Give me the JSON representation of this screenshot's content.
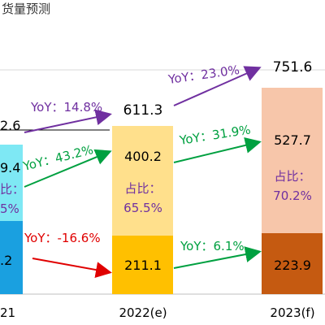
{
  "title": "货量预测",
  "chart_data": {
    "type": "bar",
    "stacked": true,
    "categories": [
      "21",
      "2022(e)",
      "2023(f)"
    ],
    "series": [
      {
        "values": [
          null,
          211.1,
          223.9
        ],
        "colors": [
          "#1aa0e0",
          "#ffc000",
          "#c55a11"
        ]
      },
      {
        "values": [
          null,
          400.2,
          527.7
        ],
        "colors": [
          "#7ee8f4",
          "#ffe08c",
          "#f7c6aa"
        ]
      }
    ],
    "partial_labels": {
      "left_top": "2.6",
      "left_mid": "9.4",
      "left_bot": ".2",
      "left_share1": "比：",
      "left_share2": "5%"
    },
    "totals": [
      null,
      611.3,
      751.6
    ],
    "totals_text": [
      "",
      "611.3",
      "751.6"
    ],
    "bottom_text": [
      "",
      "211.1",
      "223.9"
    ],
    "top_text": [
      "",
      "400.2",
      "527.7"
    ],
    "share_labels": [
      {
        "line1": "",
        "line2": ""
      },
      {
        "line1": "占比：",
        "line2": "65.5%"
      },
      {
        "line1": "占比：",
        "line2": "70.2%"
      }
    ],
    "yoy": [
      {
        "text": "YoY：14.8%",
        "color": "#7030a0"
      },
      {
        "text": "YoY：23.0%",
        "color": "#7030a0"
      },
      {
        "text": "YoY：43.2%",
        "color": "#00a040"
      },
      {
        "text": "YoY：31.9%",
        "color": "#00a040"
      },
      {
        "text": "YoY：-16.6%",
        "color": "#e00000"
      },
      {
        "text": "YoY：6.1%",
        "color": "#00a040"
      }
    ],
    "xlabel": "",
    "ylabel": ""
  }
}
